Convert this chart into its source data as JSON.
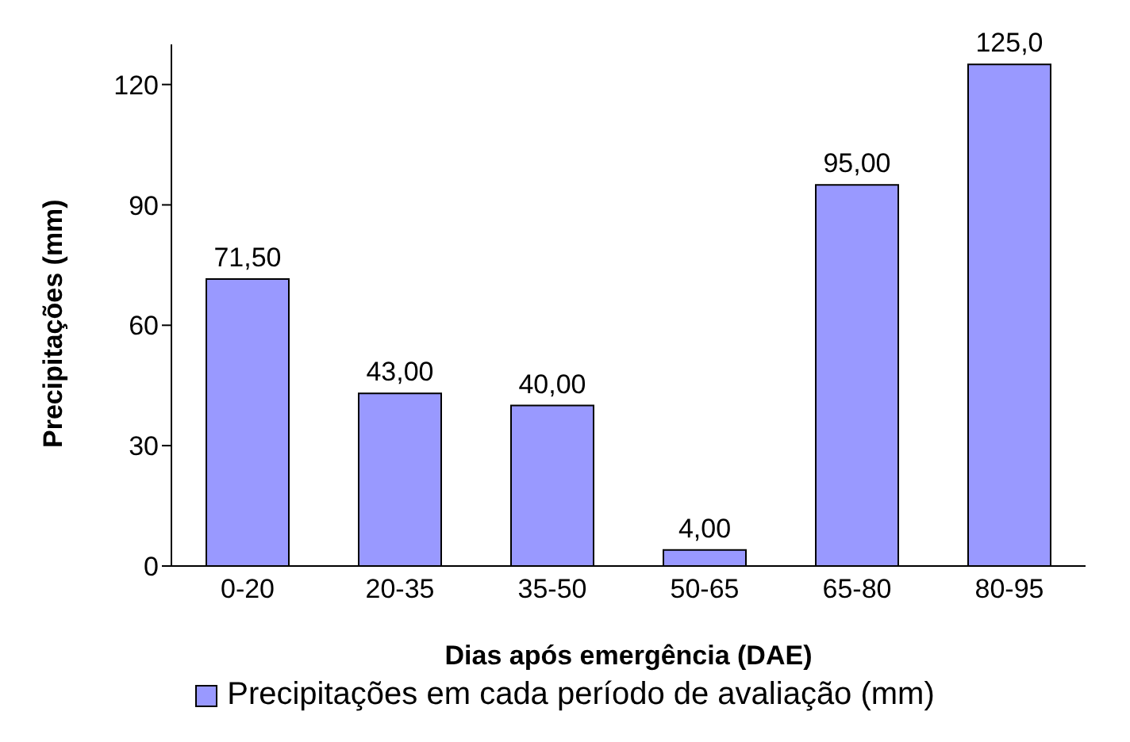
{
  "chart_data": {
    "type": "bar",
    "xlabel": "Dias após emergência (DAE)",
    "ylabel": "Precipitações (mm)",
    "categories": [
      "0-20",
      "20-35",
      "35-50",
      "50-65",
      "65-80",
      "80-95"
    ],
    "series": [
      {
        "name": "Precipitações em cada período de avaliação (mm)",
        "color": "#9999ff",
        "values": [
          71.5,
          43,
          40,
          4,
          95,
          125
        ],
        "value_labels": [
          "71,50",
          "43,00",
          "40,00",
          "4,00",
          "95,00",
          "125,0"
        ]
      }
    ],
    "ylim": [
      0,
      130
    ],
    "yticks": [
      0,
      30,
      60,
      90,
      120
    ],
    "grid": false,
    "legend": "bottom"
  }
}
